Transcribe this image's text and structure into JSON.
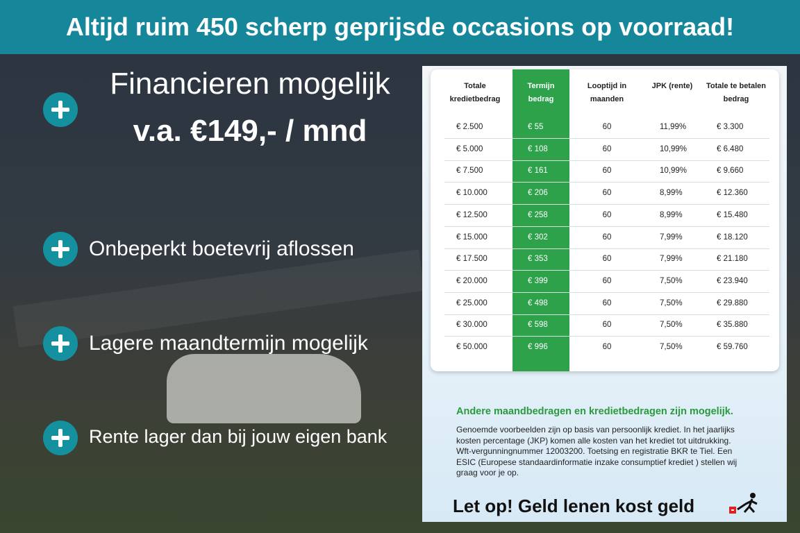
{
  "banner": {
    "title": "Altijd ruim 450 scherp geprijsde occasions op voorraad!"
  },
  "features": {
    "headline": "Financieren mogelijk",
    "subheadline": "v.a. €149,- / mnd",
    "items": [
      "Onbeperkt boetevrij aflossen",
      "Lagere maandtermijn mogelijk",
      "Rente lager dan bij jouw eigen bank"
    ]
  },
  "table": {
    "headers": [
      "Totale kredietbedrag",
      "Termijn bedrag",
      "Looptijd in maanden",
      "JPK (rente)",
      "Totale te betalen bedrag"
    ],
    "rows": [
      [
        "€ 2.500",
        "€ 55",
        "60",
        "11,99%",
        "€ 3.300"
      ],
      [
        "€ 5.000",
        "€ 108",
        "60",
        "10,99%",
        "€ 6.480"
      ],
      [
        "€ 7.500",
        "€ 161",
        "60",
        "10,99%",
        "€ 9.660"
      ],
      [
        "€ 10.000",
        "€ 206",
        "60",
        "8,99%",
        "€ 12.360"
      ],
      [
        "€ 12.500",
        "€ 258",
        "60",
        "8,99%",
        "€ 15.480"
      ],
      [
        "€ 15.000",
        "€ 302",
        "60",
        "7,99%",
        "€ 18.120"
      ],
      [
        "€ 17.500",
        "€ 353",
        "60",
        "7,99%",
        "€ 21.180"
      ],
      [
        "€ 20.000",
        "€ 399",
        "60",
        "7,50%",
        "€ 23.940"
      ],
      [
        "€ 25.000",
        "€ 498",
        "60",
        "7,50%",
        "€ 29.880"
      ],
      [
        "€ 30.000",
        "€ 598",
        "60",
        "7,50%",
        "€ 35.880"
      ],
      [
        "€ 50.000",
        "€ 996",
        "60",
        "7,50%",
        "€ 59.760"
      ]
    ]
  },
  "note": {
    "heading": "Andere maandbedragen en kredietbedragen zijn mogelijk.",
    "text": "Genoemde voorbeelden zijn op basis van persoonlijk krediet. In het jaarlijks kosten percentage (JKP) komen alle kosten van het krediet tot uitdrukking. Wft-vergunningnummer 12003200. Toetsing en registratie BKR te Tiel. Een ESIC (Europese standaardinformatie inzake consumptief krediet ) stellen wij graag voor je op.",
    "warning": "Let op! Geld lenen kost geld"
  }
}
